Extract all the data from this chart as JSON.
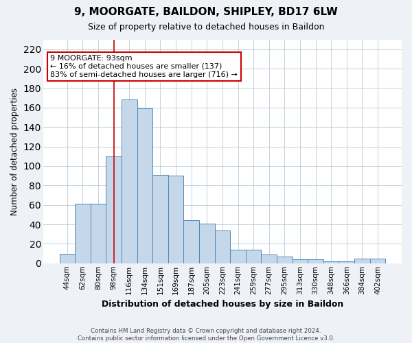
{
  "title": "9, MOORGATE, BAILDON, SHIPLEY, BD17 6LW",
  "subtitle": "Size of property relative to detached houses in Baildon",
  "xlabel": "Distribution of detached houses by size in Baildon",
  "ylabel": "Number of detached properties",
  "categories": [
    "44sqm",
    "62sqm",
    "80sqm",
    "98sqm",
    "116sqm",
    "134sqm",
    "151sqm",
    "169sqm",
    "187sqm",
    "205sqm",
    "223sqm",
    "241sqm",
    "259sqm",
    "277sqm",
    "295sqm",
    "313sqm",
    "330sqm",
    "348sqm",
    "366sqm",
    "384sqm",
    "402sqm"
  ],
  "bar_heights": [
    10,
    61,
    61,
    110,
    168,
    159,
    91,
    90,
    44,
    41,
    34,
    14,
    14,
    9,
    7,
    4,
    4,
    2,
    2,
    5,
    5
  ],
  "bar_color": "#c5d8ea",
  "bar_edgecolor": "#4f86b8",
  "vline_x_index": 3,
  "vline_color": "#cc0000",
  "annotation_text": "9 MOORGATE: 93sqm\n← 16% of detached houses are smaller (137)\n83% of semi-detached houses are larger (716) →",
  "annotation_box_color": "#ffffff",
  "annotation_box_edgecolor": "#cc0000",
  "ylim": [
    0,
    230
  ],
  "yticks": [
    0,
    20,
    40,
    60,
    80,
    100,
    120,
    140,
    160,
    180,
    200,
    220
  ],
  "footer": "Contains HM Land Registry data © Crown copyright and database right 2024.\nContains public sector information licensed under the Open Government Licence v3.0.",
  "bg_color": "#eef2f7",
  "plot_bg_color": "#ffffff"
}
